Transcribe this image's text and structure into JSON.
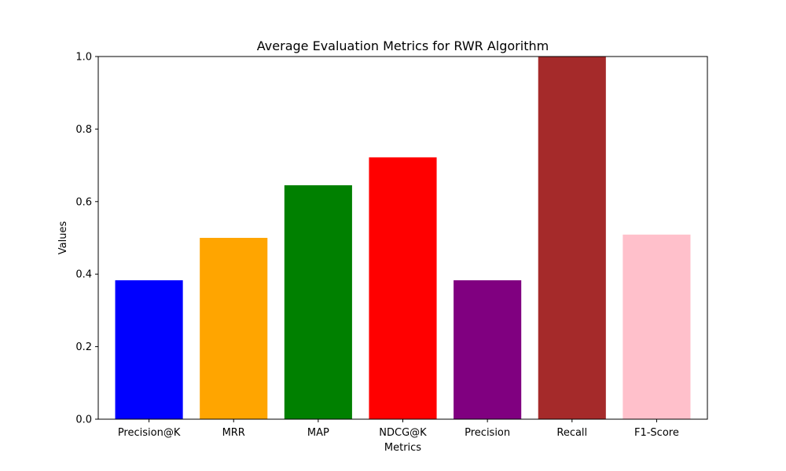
{
  "chart_data": {
    "type": "bar",
    "title": "Average Evaluation Metrics for RWR Algorithm",
    "xlabel": "Metrics",
    "ylabel": "Values",
    "categories": [
      "Precision@K",
      "MRR",
      "MAP",
      "NDCG@K",
      "Precision",
      "Recall",
      "F1-Score"
    ],
    "values": [
      0.383,
      0.5,
      0.645,
      0.722,
      0.383,
      1.0,
      0.509
    ],
    "colors": [
      "#0000ff",
      "#ffa500",
      "#008000",
      "#ff0000",
      "#800080",
      "#a52a2a",
      "#ffc0cb"
    ],
    "ylim": [
      0,
      1.0
    ],
    "yticks": [
      "0.0",
      "0.2",
      "0.4",
      "0.6",
      "0.8",
      "1.0"
    ],
    "grid": false,
    "legend": "none"
  }
}
